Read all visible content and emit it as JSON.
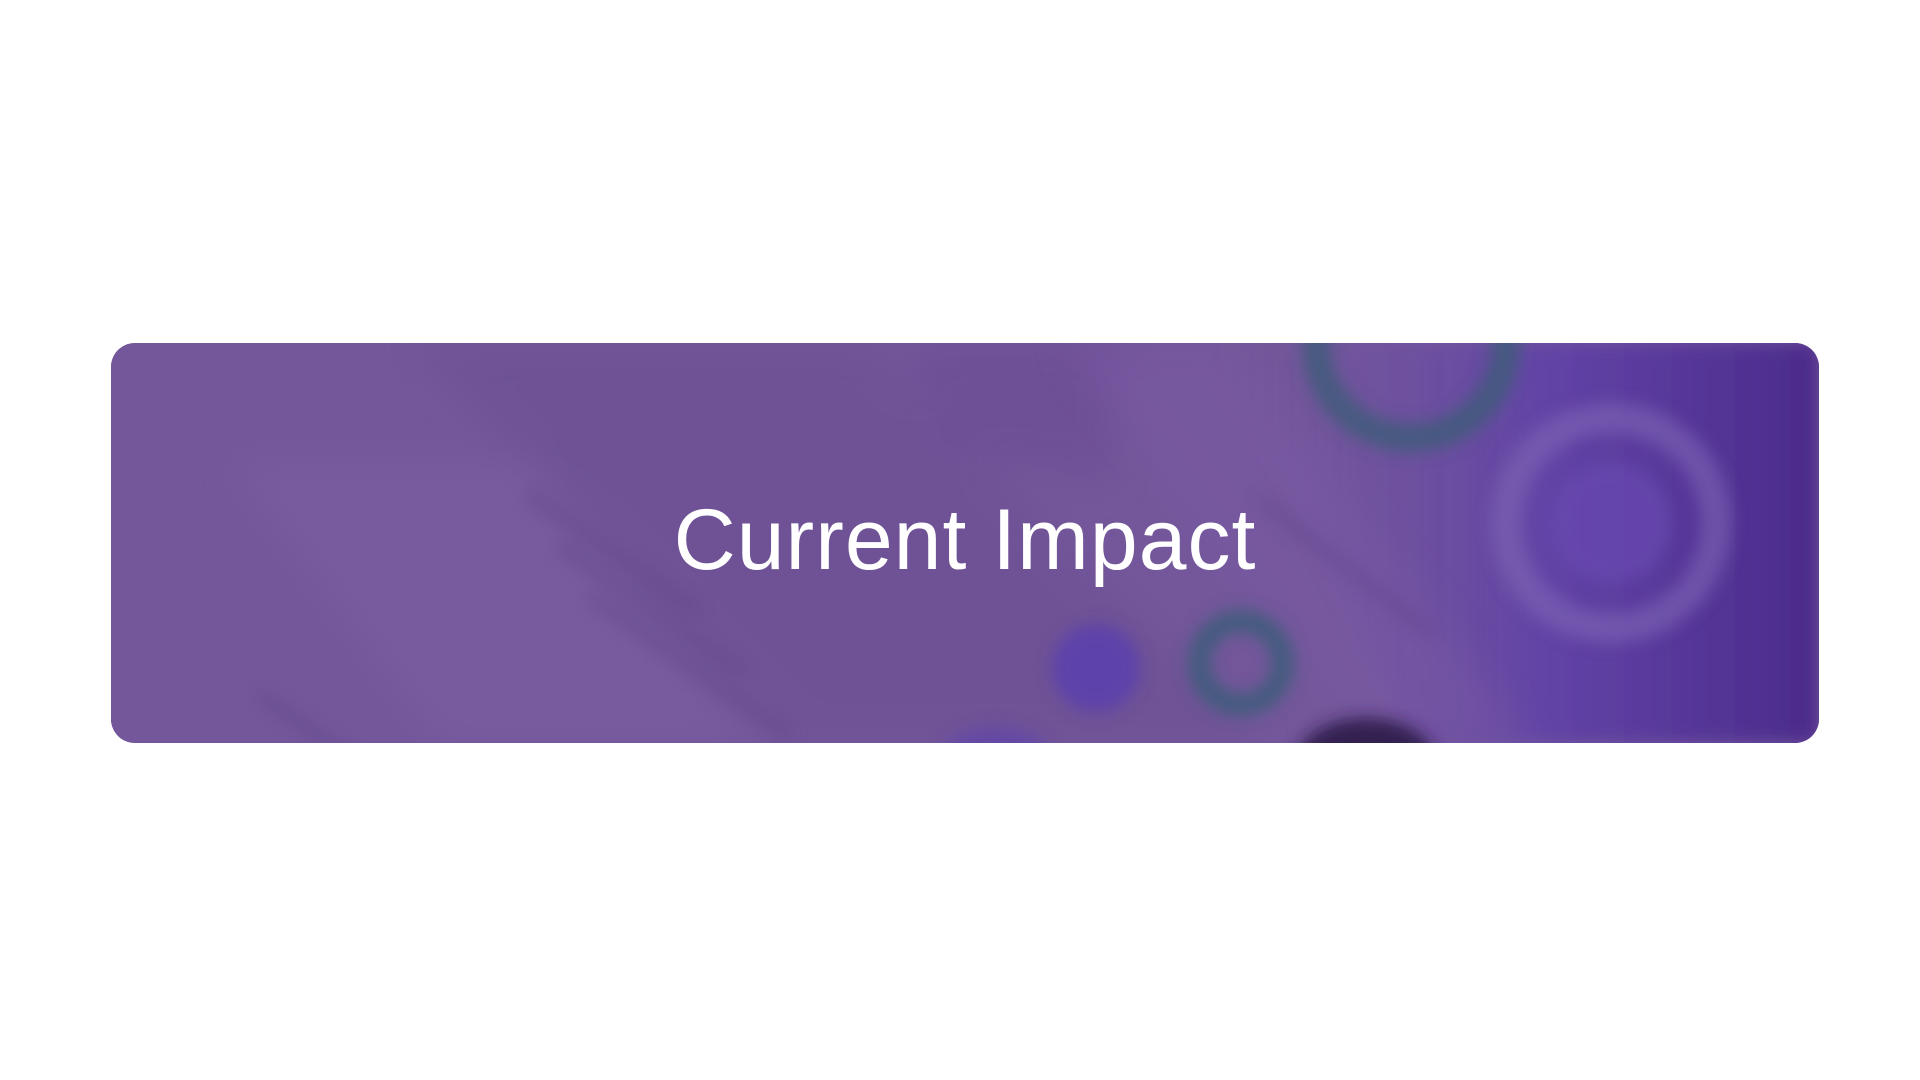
{
  "hero": {
    "title": "Current Impact",
    "colors": {
      "base": "#74579b",
      "deep_purple": "#4a2a8a",
      "violet": "#6a49b0",
      "teal_ring": "#3e5c7a",
      "dark_blob": "#2e1a4e",
      "text": "#ffffff",
      "page_background": "#ffffff"
    }
  }
}
